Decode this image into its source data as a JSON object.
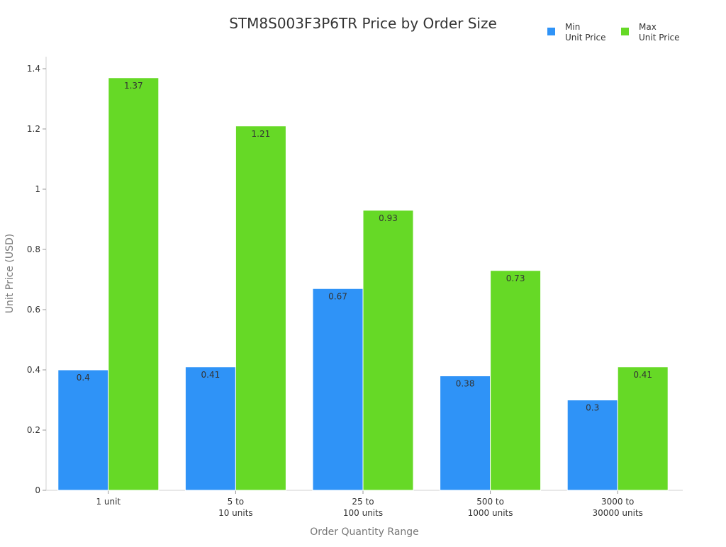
{
  "chart_data": {
    "type": "bar",
    "title": "STM8S003F3P6TR Price by Order Size",
    "xlabel": "Order Quantity Range",
    "ylabel": "Unit Price (USD)",
    "categories": [
      [
        "1 unit"
      ],
      [
        "5 to",
        "10 units"
      ],
      [
        "25 to",
        "100 units"
      ],
      [
        "500 to",
        "1000 units"
      ],
      [
        "3000 to",
        "30000 units"
      ]
    ],
    "series": [
      {
        "name": [
          "Min",
          "Unit Price"
        ],
        "color": "#2f93f7",
        "values": [
          0.4,
          0.41,
          0.67,
          0.38,
          0.3
        ],
        "labels": [
          "0.4",
          "0.41",
          "0.67",
          "0.38",
          "0.3"
        ]
      },
      {
        "name": [
          "Max",
          "Unit Price"
        ],
        "color": "#66d926",
        "values": [
          1.37,
          1.21,
          0.93,
          0.73,
          0.41
        ],
        "labels": [
          "1.37",
          "1.21",
          "0.93",
          "0.73",
          "0.41"
        ]
      }
    ],
    "ylim": [
      0,
      1.44
    ],
    "yticks": [
      0,
      0.2,
      0.4,
      0.6,
      0.8,
      1,
      1.2,
      1.4
    ],
    "ytick_labels": [
      "0",
      "0.2",
      "0.4",
      "0.6",
      "0.8",
      "1",
      "1.2",
      "1.4"
    ],
    "grid": false,
    "legend_position": "top-right",
    "colors": {
      "axis": "#d0d0d0",
      "text": "#333333",
      "axis_title": "#777777",
      "data_label": "#333333"
    }
  }
}
